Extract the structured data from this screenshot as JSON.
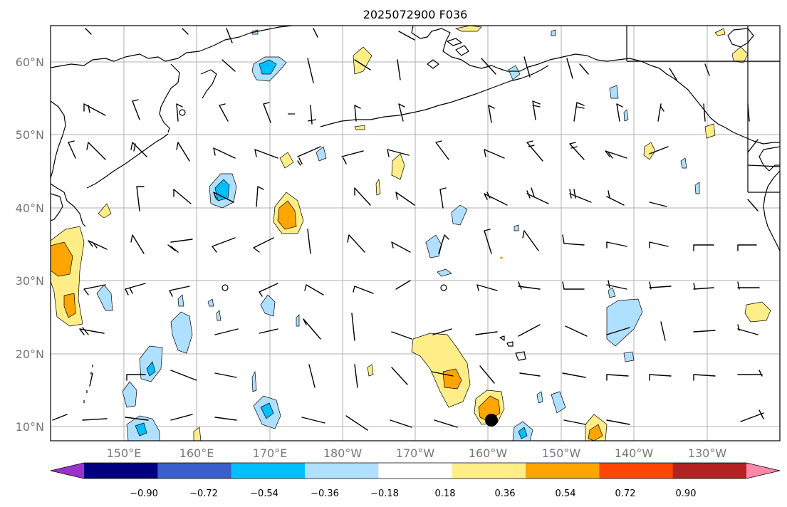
{
  "title": "2025072900 F036",
  "lat_labels": [
    "60°N",
    "50°N",
    "40°N",
    "30°N",
    "20°N",
    "10°N"
  ],
  "lon_labels": [
    "150°E",
    "160°E",
    "170°E",
    "180°W",
    "170°W",
    "160°W",
    "150°W",
    "140°W",
    "130°W"
  ],
  "colorbar": {
    "ticks": [
      "−0.90",
      "−0.72",
      "−0.54",
      "−0.36",
      "−0.18",
      "0.18",
      "0.36",
      "0.54",
      "0.72",
      "0.90"
    ],
    "colors": [
      "#9933cc",
      "#000080",
      "#3a5fcd",
      "#00bfff",
      "#b0e0ff",
      "#ffffff",
      "#ffee88",
      "#ffa500",
      "#ff4500",
      "#b22222",
      "#ff88aa"
    ],
    "extend": "both"
  },
  "map": {
    "lon_range": [
      "140°E",
      "116°W"
    ],
    "lat_range": [
      "8°N",
      "65°N"
    ],
    "grid": true,
    "fill_colors": {
      "light_positive": "#ffee88",
      "medium_positive": "#ffa500",
      "light_negative": "#b0e0ff",
      "medium_negative": "#00bfff"
    },
    "marker": "black-circle"
  }
}
